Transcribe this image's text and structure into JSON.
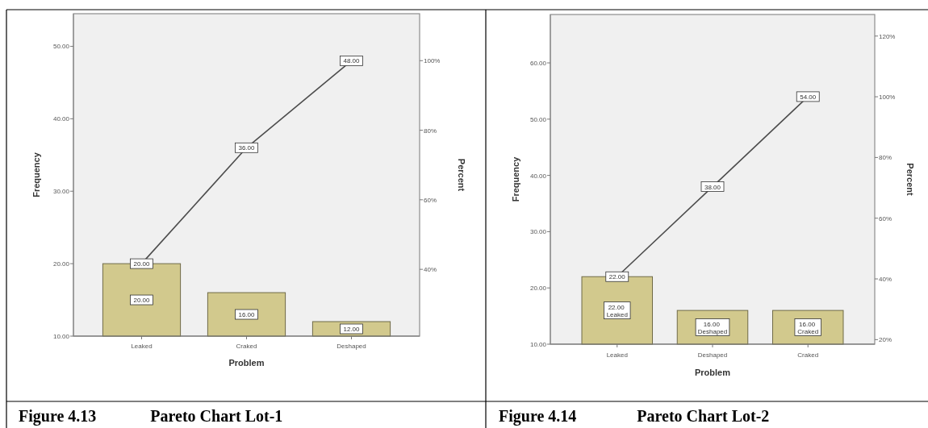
{
  "chart_data": [
    {
      "type": "bar",
      "title": "Figure 4.13\tPareto Chart Lot-1",
      "xlabel": "Problem",
      "ylabel": "Frequency",
      "y2label": "Percent",
      "categories": [
        "Leaked",
        "Craked",
        "Deshaped"
      ],
      "series": [
        {
          "color": "#d2c98d",
          "values": [
            20,
            16,
            12
          ],
          "value_labels": [
            "20.00",
            "16.00",
            "12.00"
          ]
        },
        {
          "type": "line",
          "color": "#4d4d4d",
          "marker": "square",
          "values": [
            20,
            36,
            48
          ],
          "value_labels": [
            "20.00",
            "36.00",
            "48.00"
          ]
        }
      ],
      "ylim": [
        10,
        54.5
      ],
      "yticks": [
        {
          "value": 10,
          "label": "10.00"
        },
        {
          "value": 20,
          "label": "20.00"
        },
        {
          "value": 30,
          "label": "30.00"
        },
        {
          "value": 40,
          "label": "40.00"
        },
        {
          "value": 50,
          "label": "50.00"
        }
      ],
      "y2lim": [
        20.8,
        113.5
      ],
      "y2ticks": [
        {
          "value": 40,
          "label": "40%"
        },
        {
          "value": 60,
          "label": "60%"
        },
        {
          "value": 80,
          "label": "80%"
        },
        {
          "value": 100,
          "label": "100%"
        }
      ]
    },
    {
      "type": "bar",
      "title": "Figure 4.14\tPareto Chart Lot-2",
      "xlabel": "Problem",
      "ylabel": "Frequency",
      "y2label": "Percent",
      "categories": [
        "Leaked",
        "Deshaped",
        "Craked"
      ],
      "series": [
        {
          "color": "#d2c98d",
          "values": [
            22,
            16,
            16
          ],
          "value_labels": [
            "22.00\nLeaked",
            "16.00\nDeshaped",
            "16.00\nCraked"
          ]
        },
        {
          "type": "line",
          "color": "#4d4d4d",
          "marker": "square",
          "values": [
            22,
            38,
            54
          ],
          "value_labels": [
            "22.00",
            "38.00",
            "54.00"
          ]
        }
      ],
      "ylim": [
        10,
        68.6
      ],
      "yticks": [
        {
          "value": 10,
          "label": "10.00"
        },
        {
          "value": 20,
          "label": "20.00"
        },
        {
          "value": 30,
          "label": "30.00"
        },
        {
          "value": 40,
          "label": "40.00"
        },
        {
          "value": 50,
          "label": "50.00"
        },
        {
          "value": 60,
          "label": "60.00"
        }
      ],
      "y2lim": [
        18.5,
        127.1
      ],
      "y2ticks": [
        {
          "value": 20,
          "label": "20%"
        },
        {
          "value": 40,
          "label": "40%"
        },
        {
          "value": 60,
          "label": "60%"
        },
        {
          "value": 80,
          "label": "80%"
        },
        {
          "value": 100,
          "label": "100%"
        },
        {
          "value": 120,
          "label": "120%"
        }
      ]
    }
  ]
}
